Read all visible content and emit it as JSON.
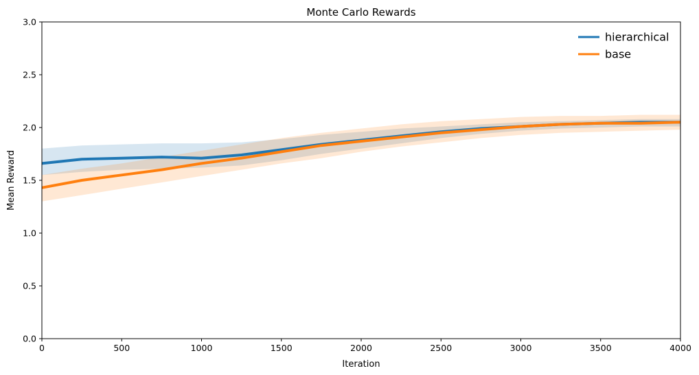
{
  "chart_data": {
    "type": "line",
    "title": "Monte Carlo Rewards",
    "xlabel": "Iteration",
    "ylabel": "Mean Reward",
    "xlim": [
      0,
      4000
    ],
    "ylim": [
      0,
      3.0
    ],
    "xticks": [
      "0",
      "500",
      "1000",
      "1500",
      "2000",
      "2500",
      "3000",
      "3500",
      "4000"
    ],
    "yticks": [
      "0.0",
      "0.5",
      "1.0",
      "1.5",
      "2.0",
      "2.5",
      "3.0"
    ],
    "grid": false,
    "legend_position": "top-right",
    "series": [
      {
        "name": "hierarchical",
        "color": "#1f77b4",
        "band_color": "#1f77b4",
        "x": [
          0,
          250,
          500,
          750,
          1000,
          1250,
          1500,
          1750,
          2000,
          2250,
          2500,
          2750,
          3000,
          3250,
          3500,
          3750,
          4000
        ],
        "mean": [
          1.66,
          1.7,
          1.71,
          1.72,
          1.71,
          1.74,
          1.79,
          1.84,
          1.88,
          1.92,
          1.96,
          1.99,
          2.01,
          2.03,
          2.04,
          2.05,
          2.05
        ],
        "upper": [
          1.8,
          1.83,
          1.84,
          1.85,
          1.85,
          1.86,
          1.89,
          1.93,
          1.96,
          1.99,
          2.01,
          2.03,
          2.05,
          2.06,
          2.07,
          2.08,
          2.08
        ],
        "lower": [
          1.55,
          1.58,
          1.6,
          1.61,
          1.62,
          1.64,
          1.69,
          1.75,
          1.8,
          1.85,
          1.9,
          1.94,
          1.97,
          1.99,
          2.0,
          2.01,
          2.01
        ]
      },
      {
        "name": "base",
        "color": "#ff7f0e",
        "band_color": "#ff7f0e",
        "x": [
          0,
          250,
          500,
          750,
          1000,
          1250,
          1500,
          1750,
          2000,
          2250,
          2500,
          2750,
          3000,
          3250,
          3500,
          3750,
          4000
        ],
        "mean": [
          1.43,
          1.5,
          1.55,
          1.6,
          1.66,
          1.71,
          1.77,
          1.83,
          1.87,
          1.91,
          1.95,
          1.98,
          2.01,
          2.03,
          2.04,
          2.04,
          2.05
        ],
        "upper": [
          1.55,
          1.61,
          1.66,
          1.72,
          1.78,
          1.84,
          1.9,
          1.95,
          1.99,
          2.03,
          2.06,
          2.08,
          2.1,
          2.11,
          2.11,
          2.12,
          2.12
        ],
        "lower": [
          1.3,
          1.36,
          1.42,
          1.48,
          1.54,
          1.6,
          1.66,
          1.71,
          1.77,
          1.82,
          1.86,
          1.9,
          1.93,
          1.95,
          1.96,
          1.97,
          1.98
        ]
      }
    ]
  }
}
